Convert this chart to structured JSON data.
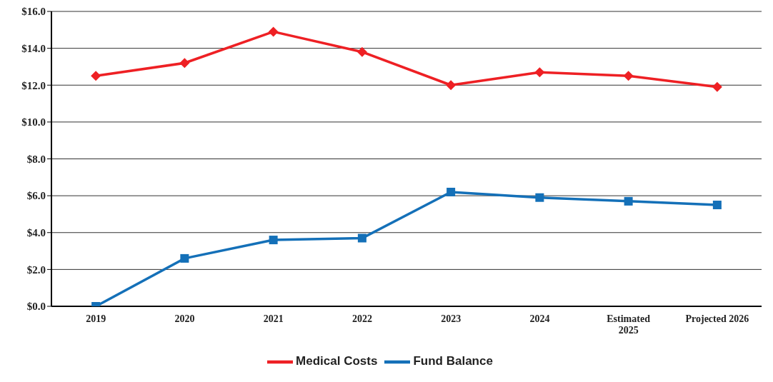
{
  "chart_data": {
    "type": "line",
    "categories": [
      "2019",
      "2020",
      "2021",
      "2022",
      "2023",
      "2024",
      "Estimated\n2025",
      "Projected 2026"
    ],
    "series": [
      {
        "name": "Medical Costs",
        "color": "#ee2024",
        "marker": "diamond",
        "values": [
          12.5,
          13.2,
          14.9,
          13.8,
          12.0,
          12.7,
          12.5,
          11.9
        ]
      },
      {
        "name": "Fund Balance",
        "color": "#1470b8",
        "marker": "square",
        "values": [
          0.0,
          2.6,
          3.6,
          3.7,
          6.2,
          5.9,
          5.7,
          5.5
        ]
      }
    ],
    "ylim": [
      0,
      16
    ],
    "yticks": [
      {
        "value": 0,
        "label": "$0.0"
      },
      {
        "value": 2,
        "label": "$2.0"
      },
      {
        "value": 4,
        "label": "$4.0"
      },
      {
        "value": 6,
        "label": "$6.0"
      },
      {
        "value": 8,
        "label": "$8.0"
      },
      {
        "value": 10,
        "label": "$10.0"
      },
      {
        "value": 12,
        "label": "$12.0"
      },
      {
        "value": 14,
        "label": "$14.0"
      },
      {
        "value": 16,
        "label": "$16.0"
      }
    ],
    "grid": "y",
    "legend": "bottom",
    "line_style": "solid"
  }
}
